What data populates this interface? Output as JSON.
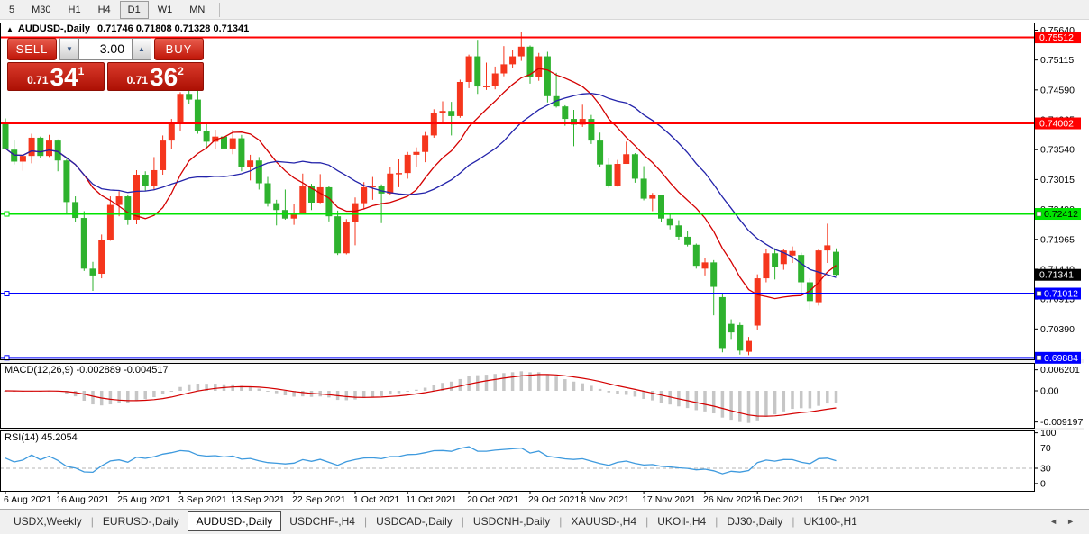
{
  "toolbar": {
    "periods": [
      {
        "label": "5",
        "active": false
      },
      {
        "label": "M30",
        "active": false
      },
      {
        "label": "H1",
        "active": false
      },
      {
        "label": "H4",
        "active": false
      },
      {
        "label": "D1",
        "active": true
      },
      {
        "label": "W1",
        "active": false
      },
      {
        "label": "MN",
        "active": false
      }
    ]
  },
  "window": {
    "title_arrow": "▲",
    "symbol": "AUDUSD-,Daily",
    "ohlc": "0.71746 0.71808 0.71328 0.71341"
  },
  "trade_panel": {
    "sell_label": "SELL",
    "buy_label": "BUY",
    "volume": "3.00",
    "spin_down": "▼",
    "spin_up": "▲",
    "sell_small": "0.71",
    "sell_big": "34",
    "sell_sup": "1",
    "buy_small": "0.71",
    "buy_big": "36",
    "buy_sup": "2"
  },
  "indicators": {
    "macd_label": "MACD(12,26,9) -0.002889 -0.004517",
    "rsi_label": "RSI(14) 45.2054"
  },
  "tabs": {
    "items": [
      "USDX,Weekly",
      "EURUSD-,Daily",
      "AUDUSD-,Daily",
      "USDCHF-,H4",
      "USDCAD-,Daily",
      "USDCNH-,Daily",
      "XAUUSD-,H4",
      "UKOil-,H4",
      "DJ30-,Daily",
      "UK100-,H1"
    ],
    "active": "AUDUSD-,Daily",
    "scroll_left": "◄",
    "scroll_right": "►"
  },
  "chart_data": {
    "type": "candlestick",
    "title": "AUDUSD-,Daily",
    "up_is_red_scheme": true,
    "colors": {
      "up": "#f5361d",
      "down": "#2eb22e",
      "ma_fast": "#d40000",
      "ma_slow": "#2323aa",
      "macd_hist": "#c6c6c6",
      "macd_signal": "#d40000",
      "rsi": "#3e9ade",
      "red": "#ff0000",
      "green": "#00e400",
      "blue": "#0000ff",
      "current_label_bg": "#000000"
    },
    "ma_periods": {
      "fast": 10,
      "slow": 20
    },
    "candles": [
      [
        0.7403,
        0.7409,
        0.7355,
        0.7356
      ],
      [
        0.7354,
        0.737,
        0.7328,
        0.7333
      ],
      [
        0.7333,
        0.7344,
        0.7317,
        0.7343
      ],
      [
        0.7343,
        0.7382,
        0.733,
        0.7375
      ],
      [
        0.7375,
        0.7377,
        0.734,
        0.7343
      ],
      [
        0.7343,
        0.738,
        0.7341,
        0.737
      ],
      [
        0.737,
        0.7372,
        0.7316,
        0.7335
      ],
      [
        0.7335,
        0.7338,
        0.724,
        0.7262
      ],
      [
        0.7262,
        0.7272,
        0.7227,
        0.7234
      ],
      [
        0.7234,
        0.7246,
        0.7141,
        0.7145
      ],
      [
        0.7145,
        0.7157,
        0.7106,
        0.7133
      ],
      [
        0.7136,
        0.7205,
        0.7128,
        0.7195
      ],
      [
        0.7195,
        0.7272,
        0.7194,
        0.7257
      ],
      [
        0.7257,
        0.7281,
        0.7237,
        0.7272
      ],
      [
        0.7272,
        0.7274,
        0.7222,
        0.7231
      ],
      [
        0.7231,
        0.7318,
        0.7223,
        0.731
      ],
      [
        0.731,
        0.7316,
        0.7282,
        0.729
      ],
      [
        0.729,
        0.7341,
        0.7284,
        0.7318
      ],
      [
        0.7318,
        0.7379,
        0.731,
        0.737
      ],
      [
        0.737,
        0.7408,
        0.7355,
        0.74
      ],
      [
        0.74,
        0.7455,
        0.7387,
        0.7452
      ],
      [
        0.7452,
        0.7462,
        0.7435,
        0.7442
      ],
      [
        0.7442,
        0.7468,
        0.7382,
        0.7387
      ],
      [
        0.7387,
        0.7402,
        0.7357,
        0.7368
      ],
      [
        0.7368,
        0.7389,
        0.7355,
        0.7377
      ],
      [
        0.7377,
        0.741,
        0.7354,
        0.7356
      ],
      [
        0.7356,
        0.7389,
        0.7346,
        0.7374
      ],
      [
        0.7374,
        0.738,
        0.7316,
        0.7323
      ],
      [
        0.7323,
        0.7345,
        0.73,
        0.7335
      ],
      [
        0.7335,
        0.7341,
        0.7284,
        0.7295
      ],
      [
        0.7295,
        0.7306,
        0.7254,
        0.726
      ],
      [
        0.726,
        0.7266,
        0.7221,
        0.7248
      ],
      [
        0.7248,
        0.7284,
        0.7231,
        0.7233
      ],
      [
        0.7233,
        0.7258,
        0.7222,
        0.7243
      ],
      [
        0.7243,
        0.7312,
        0.7241,
        0.729
      ],
      [
        0.729,
        0.7294,
        0.7248,
        0.7261
      ],
      [
        0.7261,
        0.7311,
        0.726,
        0.7288
      ],
      [
        0.7288,
        0.7291,
        0.7228,
        0.7237
      ],
      [
        0.7237,
        0.7247,
        0.7169,
        0.7172
      ],
      [
        0.7172,
        0.7232,
        0.717,
        0.7227
      ],
      [
        0.7227,
        0.727,
        0.7186,
        0.726
      ],
      [
        0.726,
        0.7297,
        0.725,
        0.7288
      ],
      [
        0.7288,
        0.7306,
        0.7266,
        0.7291
      ],
      [
        0.7291,
        0.7293,
        0.7225,
        0.7277
      ],
      [
        0.7277,
        0.7324,
        0.7274,
        0.7312
      ],
      [
        0.7312,
        0.7337,
        0.7288,
        0.7313
      ],
      [
        0.7313,
        0.735,
        0.7303,
        0.7345
      ],
      [
        0.7345,
        0.7358,
        0.7324,
        0.735
      ],
      [
        0.735,
        0.7385,
        0.7332,
        0.7379
      ],
      [
        0.7379,
        0.7425,
        0.7375,
        0.7418
      ],
      [
        0.7418,
        0.7439,
        0.74,
        0.7422
      ],
      [
        0.7422,
        0.7438,
        0.7379,
        0.7413
      ],
      [
        0.7413,
        0.7477,
        0.741,
        0.7473
      ],
      [
        0.7473,
        0.7521,
        0.7462,
        0.7518
      ],
      [
        0.7518,
        0.7547,
        0.7452,
        0.7465
      ],
      [
        0.7465,
        0.7507,
        0.7459,
        0.7466
      ],
      [
        0.7466,
        0.75,
        0.746,
        0.7488
      ],
      [
        0.7488,
        0.7536,
        0.7483,
        0.7504
      ],
      [
        0.7504,
        0.7529,
        0.7498,
        0.7518
      ],
      [
        0.7518,
        0.756,
        0.751,
        0.7535
      ],
      [
        0.7535,
        0.7537,
        0.747,
        0.7481
      ],
      [
        0.7481,
        0.7524,
        0.7475,
        0.7518
      ],
      [
        0.7518,
        0.7526,
        0.7437,
        0.7448
      ],
      [
        0.7448,
        0.7489,
        0.7428,
        0.743
      ],
      [
        0.743,
        0.7432,
        0.7396,
        0.7408
      ],
      [
        0.7408,
        0.7424,
        0.736,
        0.7398
      ],
      [
        0.7398,
        0.7433,
        0.7394,
        0.7408
      ],
      [
        0.7408,
        0.7415,
        0.7364,
        0.737
      ],
      [
        0.737,
        0.7384,
        0.7323,
        0.7328
      ],
      [
        0.7328,
        0.7339,
        0.7287,
        0.729
      ],
      [
        0.729,
        0.7336,
        0.7289,
        0.7329
      ],
      [
        0.7329,
        0.7368,
        0.7329,
        0.7346
      ],
      [
        0.7346,
        0.7348,
        0.7296,
        0.7303
      ],
      [
        0.7303,
        0.7325,
        0.7265,
        0.7268
      ],
      [
        0.7268,
        0.7278,
        0.7246,
        0.7274
      ],
      [
        0.7274,
        0.7275,
        0.7227,
        0.7233
      ],
      [
        0.7233,
        0.7242,
        0.7214,
        0.7221
      ],
      [
        0.7221,
        0.723,
        0.7195,
        0.7201
      ],
      [
        0.7201,
        0.7211,
        0.7184,
        0.7187
      ],
      [
        0.7187,
        0.7189,
        0.7145,
        0.715
      ],
      [
        0.7145,
        0.7164,
        0.7133,
        0.7156
      ],
      [
        0.7156,
        0.716,
        0.7063,
        0.7113
      ],
      [
        0.7095,
        0.71,
        0.6998,
        0.7004
      ],
      [
        0.7048,
        0.7056,
        0.702,
        0.7033
      ],
      [
        0.7046,
        0.705,
        0.6994,
        0.7001
      ],
      [
        0.6999,
        0.7025,
        0.6993,
        0.7018
      ],
      [
        0.7045,
        0.7135,
        0.7038,
        0.7128
      ],
      [
        0.7128,
        0.7179,
        0.7121,
        0.7172
      ],
      [
        0.7172,
        0.7181,
        0.7126,
        0.7148
      ],
      [
        0.7153,
        0.718,
        0.7143,
        0.7177
      ],
      [
        0.7168,
        0.7184,
        0.7155,
        0.7176
      ],
      [
        0.7169,
        0.7173,
        0.7101,
        0.7121
      ],
      [
        0.7121,
        0.7128,
        0.7073,
        0.7088
      ],
      [
        0.7086,
        0.7179,
        0.708,
        0.7177
      ],
      [
        0.7177,
        0.7224,
        0.7155,
        0.7186
      ],
      [
        0.71746,
        0.71808,
        0.71328,
        0.71341
      ]
    ],
    "x_labels": [
      {
        "index": 0,
        "text": "6 Aug 2021"
      },
      {
        "index": 6,
        "text": "16 Aug 2021"
      },
      {
        "index": 13,
        "text": "25 Aug 2021"
      },
      {
        "index": 20,
        "text": "3 Sep 2021"
      },
      {
        "index": 26,
        "text": "13 Sep 2021"
      },
      {
        "index": 33,
        "text": "22 Sep 2021"
      },
      {
        "index": 40,
        "text": "1 Oct 2021"
      },
      {
        "index": 46,
        "text": "11 Oct 2021"
      },
      {
        "index": 53,
        "text": "20 Oct 2021"
      },
      {
        "index": 60,
        "text": "29 Oct 2021"
      },
      {
        "index": 66,
        "text": "8 Nov 2021"
      },
      {
        "index": 73,
        "text": "17 Nov 2021"
      },
      {
        "index": 80,
        "text": "26 Nov 2021"
      },
      {
        "index": 86,
        "text": "6 Dec 2021"
      },
      {
        "index": 93,
        "text": "15 Dec 2021"
      }
    ],
    "price_axis_ticks": [
      "0.75640",
      "0.75115",
      "0.74590",
      "0.74065",
      "0.73540",
      "0.73015",
      "0.72490",
      "0.71965",
      "0.71440",
      "0.70915",
      "0.70390",
      "0.69865"
    ],
    "current_price": {
      "text": "0.71341",
      "value": 0.71341
    },
    "hlines": [
      {
        "label": "0.75512",
        "price": 0.75512,
        "color": "red",
        "text_color": "#ffffff",
        "selected": false
      },
      {
        "label": "0.74002",
        "price": 0.74002,
        "color": "red",
        "text_color": "#ffffff",
        "selected": false
      },
      {
        "label": "0.72412",
        "price": 0.72412,
        "color": "green",
        "text_color": "#000000",
        "selected": true
      },
      {
        "label": "0.71012",
        "price": 0.71012,
        "color": "blue",
        "text_color": "#ffffff",
        "selected": true
      },
      {
        "label": "0.69884",
        "price": 0.69884,
        "color": "blue",
        "text_color": "#ffffff",
        "selected": true
      }
    ],
    "macd": {
      "params": "12,26,9",
      "value": -0.002889,
      "signal": -0.004517,
      "axis": [
        {
          "text": "0.006201",
          "value": 0.006201
        },
        {
          "text": "0.00",
          "value": 0
        },
        {
          "text": "-0.009197",
          "value": -0.009197
        }
      ]
    },
    "rsi": {
      "period": 14,
      "value": 45.2054,
      "levels": [
        70,
        30
      ],
      "axis": [
        {
          "text": "100",
          "value": 100
        },
        {
          "text": "70",
          "value": 70
        },
        {
          "text": "30",
          "value": 30
        },
        {
          "text": "0",
          "value": 0
        }
      ]
    }
  }
}
